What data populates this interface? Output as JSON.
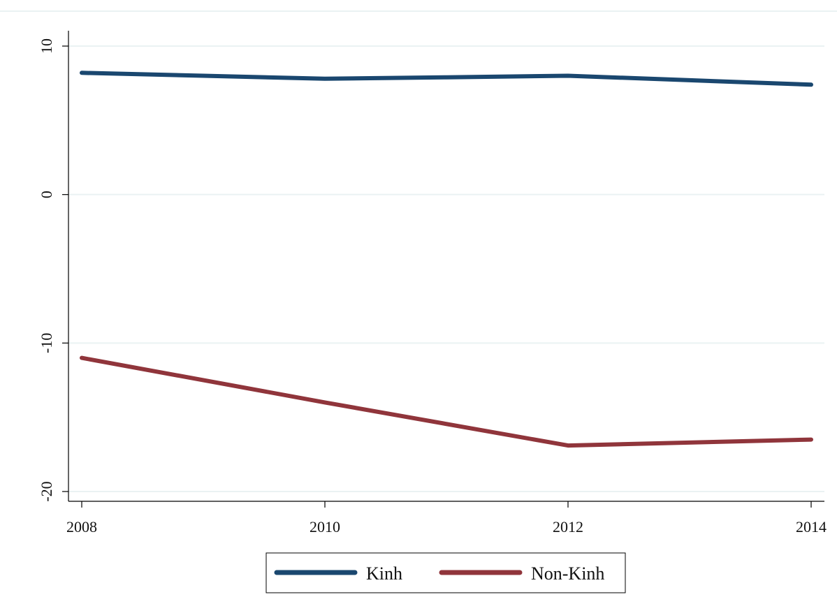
{
  "chart_data": {
    "type": "line",
    "title": "",
    "xlabel": "",
    "ylabel": "",
    "x": [
      2008,
      2010,
      2012,
      2014
    ],
    "xlim": [
      2008,
      2014
    ],
    "ylim": [
      -20,
      10
    ],
    "xticks": [
      2008,
      2010,
      2012,
      2014
    ],
    "yticks": [
      -20,
      -10,
      0,
      10
    ],
    "xtick_labels": [
      "2008",
      "2010",
      "2012",
      "2014"
    ],
    "ytick_labels": [
      "-20",
      "-10",
      "0",
      "10"
    ],
    "grid": true,
    "legend_position": "bottom",
    "series": [
      {
        "name": "Kinh",
        "color": "#1a476f",
        "x": [
          2008,
          2009,
          2010,
          2011,
          2012,
          2013,
          2014
        ],
        "values": [
          8.2,
          8.0,
          7.8,
          7.9,
          8.0,
          7.7,
          7.4
        ]
      },
      {
        "name": "Non-Kinh",
        "color": "#90353b",
        "x": [
          2008,
          2010,
          2012,
          2014
        ],
        "values": [
          -11.0,
          -14.0,
          -16.9,
          -16.5
        ]
      }
    ]
  }
}
